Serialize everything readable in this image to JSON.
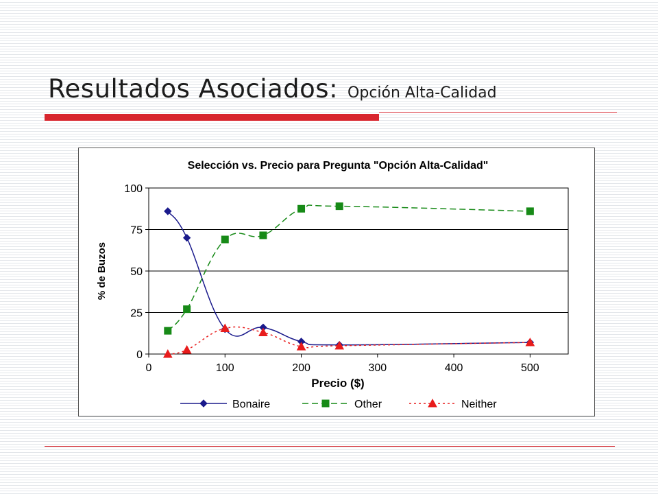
{
  "slide": {
    "title": "Resultados Asociados:",
    "subtitle": "Opción Alta-Calidad"
  },
  "chart_data": {
    "type": "line",
    "title": "Selección vs. Precio para Pregunta \"Opción Alta-Calidad\"",
    "xlabel": "Precio ($)",
    "ylabel": "% de Buzos",
    "xlim": [
      0,
      550
    ],
    "ylim": [
      0,
      100
    ],
    "xticks": [
      0,
      100,
      200,
      300,
      400,
      500
    ],
    "yticks": [
      0,
      25,
      50,
      75,
      100
    ],
    "grid": "horizontal",
    "legend": "bottom",
    "x": [
      25,
      50,
      100,
      150,
      200,
      250,
      500
    ],
    "series": [
      {
        "name": "Bonaire",
        "values": [
          86,
          70,
          15,
          16,
          7.5,
          5.5,
          7
        ],
        "color": "#1a1a8c",
        "marker": "diamond",
        "dash": "solid"
      },
      {
        "name": "Other",
        "values": [
          14,
          27,
          69,
          71.5,
          87.5,
          89,
          86
        ],
        "color": "#178a17",
        "marker": "square",
        "dash": "dashed"
      },
      {
        "name": "Neither",
        "values": [
          0,
          2.5,
          15.5,
          13,
          4.5,
          5,
          7
        ],
        "color": "#e81c1c",
        "marker": "triangle",
        "dash": "dotted"
      }
    ]
  }
}
